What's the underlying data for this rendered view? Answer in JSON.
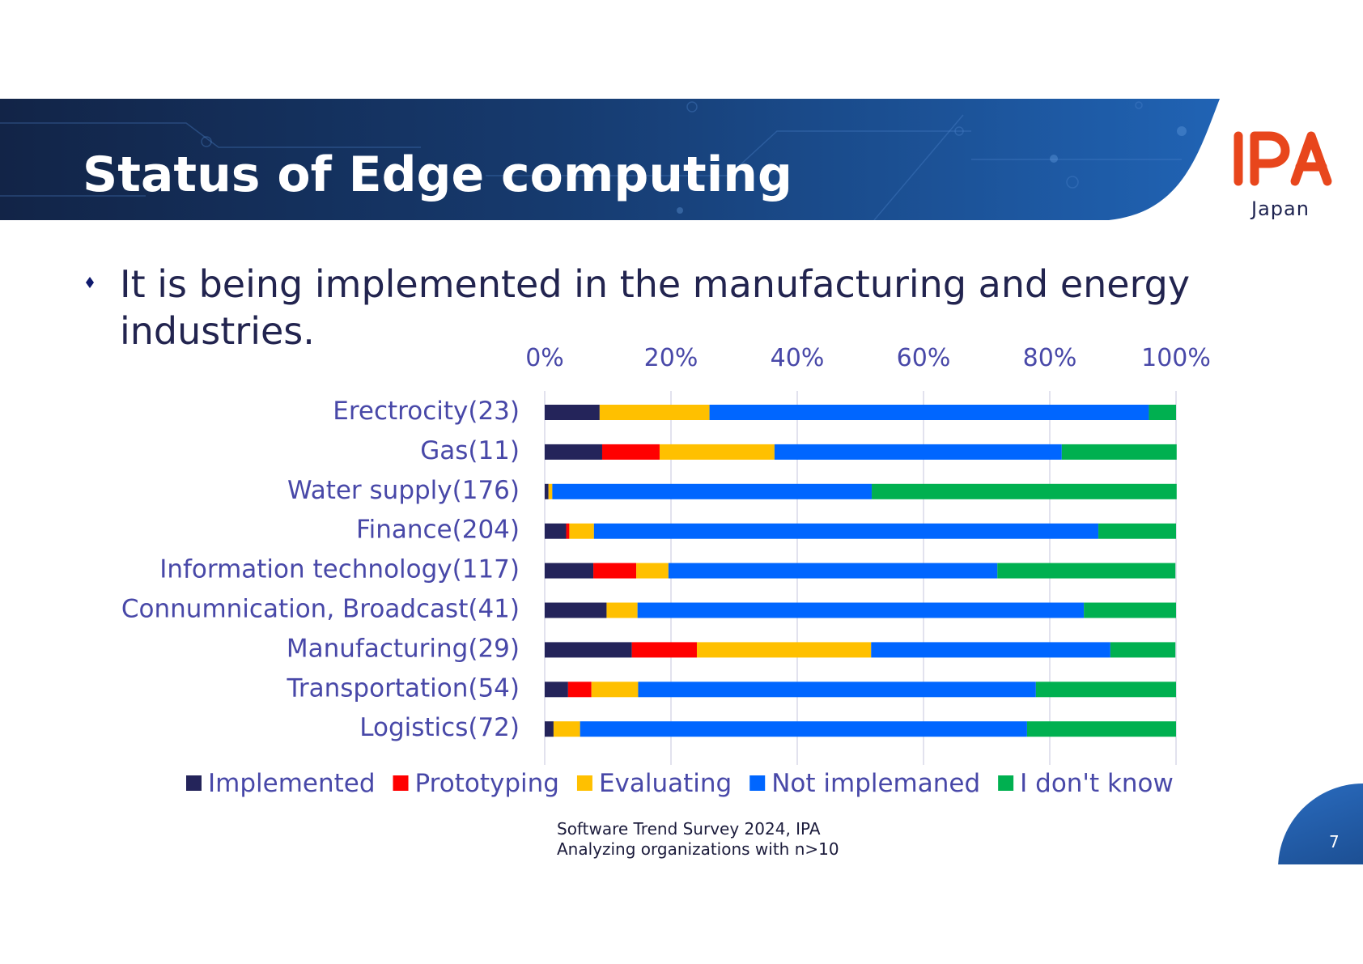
{
  "header": {
    "title": "Status of Edge computing",
    "logo_text": "IPA",
    "logo_subtext": "Japan",
    "colors": {
      "banner_dark": "#132a4f",
      "banner_light": "#1f5fae",
      "logo": "#e8461c"
    }
  },
  "bullet": {
    "icon": "diamond-bullet-icon",
    "text": "It is being implemented in the manufacturing and energy industries."
  },
  "source": {
    "line1": "Software Trend Survey 2024, IPA",
    "line2": "Analyzing organizations with n>10"
  },
  "page_number": "7",
  "chart_data": {
    "type": "bar",
    "orientation": "horizontal",
    "stacked": "100%",
    "title": "",
    "xlabel": "",
    "ylabel": "",
    "xlim": [
      0,
      100
    ],
    "x_ticks": [
      "0%",
      "20%",
      "40%",
      "60%",
      "80%",
      "100%"
    ],
    "x_axis_position": "top",
    "grid": true,
    "legend_position": "bottom",
    "categories": [
      "Erectrocity(23)",
      "Gas(11)",
      "Water supply(176)",
      "Finance(204)",
      "Information technology(117)",
      "Connumnication, Broadcast(41)",
      "Manufacturing(29)",
      "Transportation(54)",
      "Logistics(72)"
    ],
    "series": [
      {
        "name": "Implemented",
        "color": "#24245a",
        "values": [
          8.7,
          9.1,
          0.6,
          3.4,
          7.7,
          9.8,
          13.8,
          3.7,
          1.4
        ]
      },
      {
        "name": "Prototyping",
        "color": "#ff0000",
        "values": [
          0.0,
          9.1,
          0.0,
          0.5,
          6.8,
          0.0,
          10.3,
          3.7,
          0.0
        ]
      },
      {
        "name": "Evaluating",
        "color": "#ffc000",
        "values": [
          17.4,
          18.2,
          0.6,
          3.9,
          5.1,
          4.9,
          27.6,
          7.4,
          4.2
        ]
      },
      {
        "name": "Not implemaned",
        "color": "#0066ff",
        "values": [
          69.6,
          45.5,
          50.6,
          79.9,
          52.1,
          70.7,
          37.9,
          63.0,
          70.8
        ]
      },
      {
        "name": "I don't know",
        "color": "#00b050",
        "values": [
          4.3,
          18.2,
          48.3,
          12.3,
          28.2,
          14.6,
          10.3,
          22.2,
          23.6
        ]
      }
    ]
  }
}
